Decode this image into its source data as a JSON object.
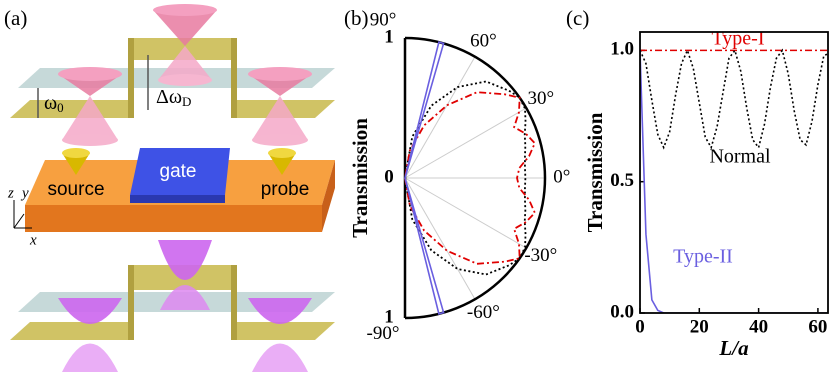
{
  "panel_a": {
    "label": "(a)",
    "omega": "ω",
    "omega_sub": "0",
    "delta": "Δω",
    "delta_sub": "D",
    "gate": "gate",
    "source": "source",
    "probe": "probe",
    "axis_z": "z",
    "axis_y": "y",
    "axis_x": "x"
  },
  "chart_data": [
    {
      "type": "polar",
      "label": "(b)",
      "ylabel": "Transmission",
      "rlim": [
        0,
        1
      ],
      "rticks": [
        0,
        1
      ],
      "thetaticks": [
        {
          "value": 90,
          "label": "90°"
        },
        {
          "value": 60,
          "label": "60°"
        },
        {
          "value": 30,
          "label": "30°"
        },
        {
          "value": 0,
          "label": "0°"
        },
        {
          "value": -30,
          "label": "-30°"
        },
        {
          "value": -60,
          "label": "-60°"
        },
        {
          "value": -90,
          "label": "-90°"
        }
      ],
      "series": [
        {
          "color": "#000000",
          "style": "dotted",
          "theta": [
            -90,
            -80,
            -70,
            -60,
            -50,
            -40,
            -35,
            -30,
            -25,
            -20,
            -15,
            -10,
            -5,
            0,
            5,
            10,
            15,
            20,
            25,
            30,
            35,
            40,
            50,
            60,
            70,
            80,
            90
          ],
          "values": [
            0,
            0.3,
            0.55,
            0.75,
            0.9,
            0.97,
            1.0,
            0.99,
            0.95,
            0.91,
            0.89,
            0.87,
            0.86,
            0.86,
            0.86,
            0.87,
            0.89,
            0.91,
            0.95,
            0.99,
            1.0,
            0.97,
            0.9,
            0.75,
            0.55,
            0.3,
            0
          ]
        },
        {
          "color": "#e00000",
          "style": "dashdot",
          "theta": [
            -90,
            -80,
            -70,
            -60,
            -50,
            -40,
            -35,
            -30,
            -25,
            -20,
            -15,
            -10,
            -5,
            0,
            5,
            10,
            15,
            20,
            25,
            30,
            35,
            40,
            50,
            60,
            70,
            80,
            90
          ],
          "values": [
            0,
            0.2,
            0.4,
            0.6,
            0.8,
            0.93,
            1.0,
            0.94,
            0.86,
            0.92,
            0.96,
            0.9,
            0.82,
            0.8,
            0.82,
            0.9,
            0.96,
            0.92,
            0.86,
            0.94,
            1.0,
            0.93,
            0.8,
            0.6,
            0.4,
            0.2,
            0
          ]
        },
        {
          "color": "#6a5fe0",
          "style": "solid",
          "theta": [
            -90,
            -77,
            -76,
            -74,
            -73,
            0,
            73,
            74,
            76,
            77,
            90
          ],
          "values": [
            0,
            0,
            1,
            1,
            0,
            0,
            0,
            1,
            1,
            0,
            0
          ]
        }
      ]
    },
    {
      "type": "line",
      "label": "(c)",
      "xlabel": "L/a",
      "ylabel": "Transmission",
      "x": [
        0,
        2,
        4,
        6,
        8,
        10,
        12,
        14,
        16,
        18,
        20,
        22,
        24,
        26,
        28,
        30,
        32,
        34,
        36,
        38,
        40,
        42,
        44,
        46,
        48,
        50,
        52,
        54,
        56,
        58,
        60,
        62,
        64
      ],
      "xlim": [
        0,
        63.4
      ],
      "ylim": [
        0,
        1.07
      ],
      "xticks": [
        0,
        20,
        40,
        60
      ],
      "yticks": [
        {
          "value": 0,
          "label": "0.0"
        },
        {
          "value": 0.5,
          "label": "0.5"
        },
        {
          "value": 1,
          "label": "1.0"
        }
      ],
      "series": [
        {
          "name": "Type-I",
          "color": "#e00000",
          "style": "dashdot",
          "values": [
            1,
            1,
            1,
            1,
            1,
            1,
            1,
            1,
            1,
            1,
            1,
            1,
            1,
            1,
            1,
            1,
            1,
            1,
            1,
            1,
            1,
            1,
            1,
            1,
            1,
            1,
            1,
            1,
            1,
            1,
            1,
            1,
            1
          ]
        },
        {
          "name": "Normal",
          "color": "#000000",
          "style": "dotted",
          "values": [
            1,
            0.95,
            0.81,
            0.68,
            0.63,
            0.69,
            0.83,
            0.95,
            1,
            0.93,
            0.8,
            0.67,
            0.63,
            0.71,
            0.84,
            0.97,
            1,
            0.92,
            0.78,
            0.66,
            0.63,
            0.72,
            0.86,
            0.97,
            1,
            0.91,
            0.77,
            0.66,
            0.64,
            0.73,
            0.87,
            0.98,
            0.99
          ]
        },
        {
          "name": "Type-II",
          "color": "#6a5fe0",
          "style": "solid",
          "values": [
            1,
            0.3,
            0.05,
            0.01,
            0,
            0,
            0,
            0,
            0,
            0,
            0,
            0,
            0,
            0,
            0,
            0,
            0,
            0,
            0,
            0,
            0,
            0,
            0,
            0,
            0,
            0,
            0,
            0,
            0,
            0,
            0,
            0,
            0
          ]
        }
      ]
    }
  ]
}
